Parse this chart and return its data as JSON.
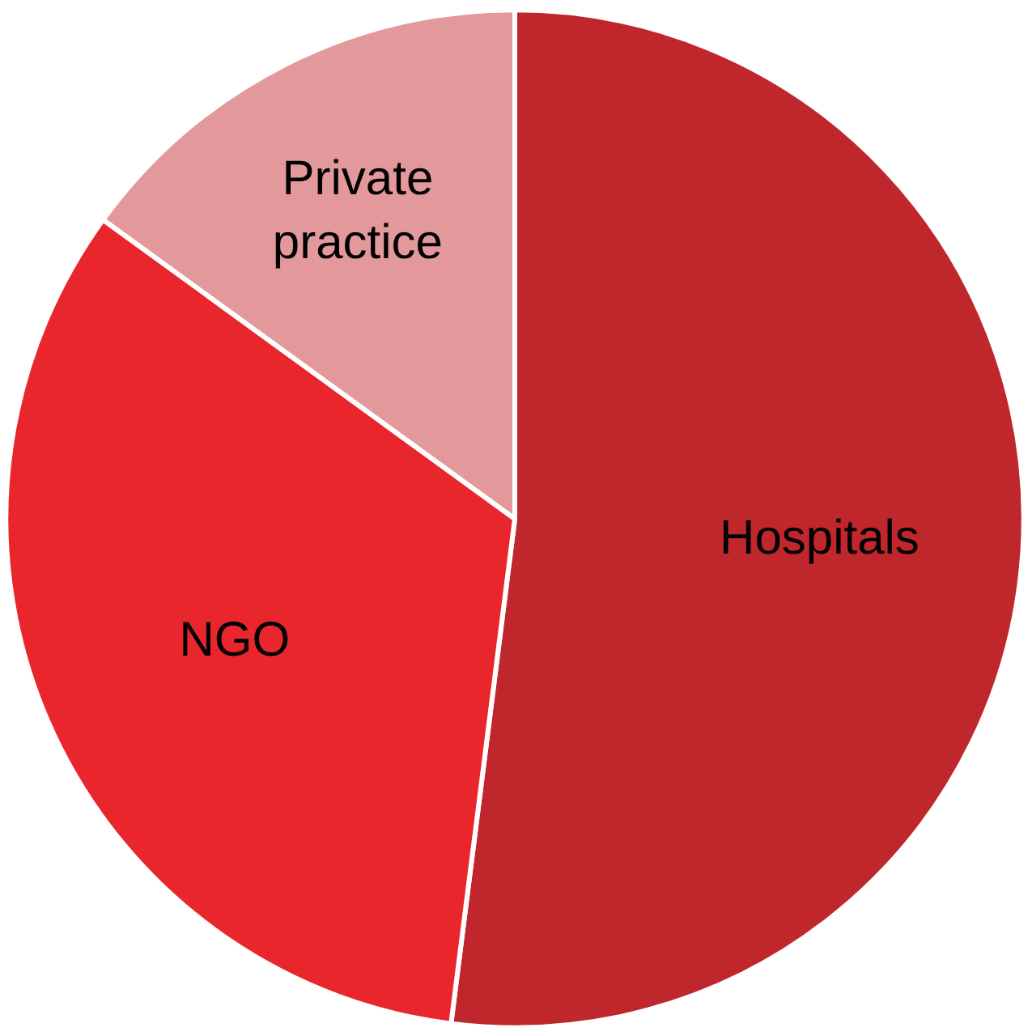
{
  "chart_data": {
    "type": "pie",
    "categories": [
      "Hospitals",
      "NGO",
      "Private practice"
    ],
    "values": [
      52,
      33,
      15
    ],
    "colors": [
      "#c0272d",
      "#e8262b",
      "#e3999b"
    ]
  }
}
